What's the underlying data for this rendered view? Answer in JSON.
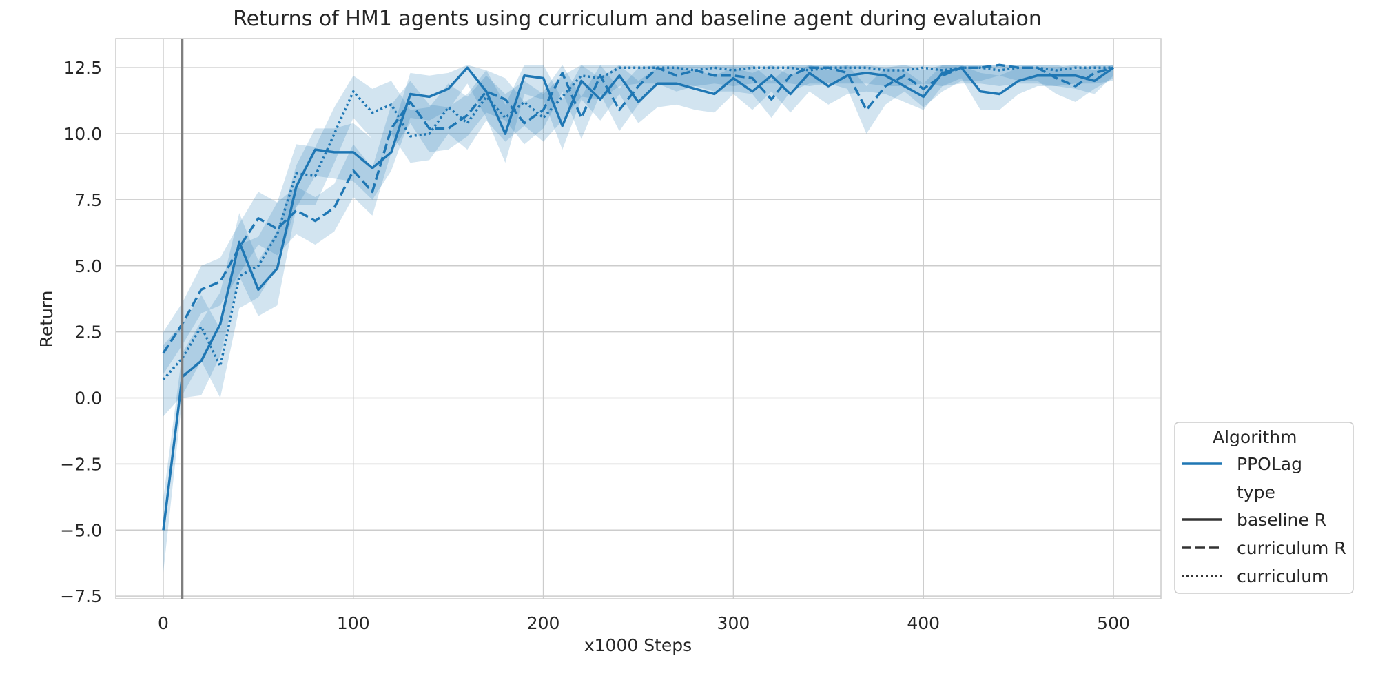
{
  "chart_data": {
    "type": "line",
    "title": "Returns of HM1 agents using curriculum and baseline agent during evalutaion",
    "xlabel": "x1000 Steps",
    "ylabel": "Return",
    "xlim": [
      -25,
      525
    ],
    "ylim": [
      -7.6,
      13.6
    ],
    "xticks": [
      0,
      100,
      200,
      300,
      400,
      500
    ],
    "xtick_labels": [
      "0",
      "100",
      "200",
      "300",
      "400",
      "500"
    ],
    "yticks": [
      -7.5,
      -5.0,
      -2.5,
      0.0,
      2.5,
      5.0,
      7.5,
      10.0,
      12.5
    ],
    "ytick_labels": [
      "−7.5",
      "−5.0",
      "−2.5",
      "0.0",
      "2.5",
      "5.0",
      "7.5",
      "10.0",
      "12.5"
    ],
    "grid": true,
    "vline_x": 10,
    "legend_position": "lower-right outside",
    "legend": {
      "algorithm_title": "Algorithm",
      "algorithm_entries": [
        {
          "label": "PPOLag",
          "color": "#1f77b4"
        }
      ],
      "type_title": "type",
      "type_entries": [
        {
          "label": "baseline R",
          "dash": "solid"
        },
        {
          "label": "curriculum R",
          "dash": "dashed"
        },
        {
          "label": "curriculum",
          "dash": "dotted"
        }
      ]
    },
    "colors": {
      "series": "#1f77b4",
      "band": "#1f77b4",
      "vline": "#7f7f7f",
      "grid": "#cccccc",
      "axis": "#cccccc"
    },
    "x": [
      0,
      10,
      20,
      30,
      40,
      50,
      60,
      70,
      80,
      90,
      100,
      110,
      120,
      130,
      140,
      150,
      160,
      170,
      180,
      190,
      200,
      210,
      220,
      230,
      240,
      250,
      260,
      270,
      280,
      290,
      300,
      310,
      320,
      330,
      340,
      350,
      360,
      370,
      380,
      390,
      400,
      410,
      420,
      430,
      440,
      450,
      460,
      470,
      480,
      490,
      500
    ],
    "series": [
      {
        "name": "baseline R",
        "dash": "solid",
        "values": [
          -5.0,
          0.8,
          1.4,
          2.8,
          5.9,
          4.1,
          4.9,
          8.0,
          9.4,
          9.3,
          9.3,
          8.7,
          9.3,
          11.5,
          11.4,
          11.7,
          12.5,
          11.6,
          10.0,
          12.2,
          12.1,
          10.3,
          12.0,
          11.3,
          12.2,
          11.2,
          11.9,
          11.9,
          11.7,
          11.5,
          12.1,
          11.6,
          12.2,
          11.5,
          12.3,
          11.8,
          12.2,
          12.3,
          12.2,
          11.8,
          11.4,
          12.3,
          12.5,
          11.6,
          11.5,
          12.0,
          12.2,
          12.2,
          12.2,
          12.0,
          12.5
        ],
        "lower": [
          -6.6,
          0.0,
          0.1,
          1.6,
          4.6,
          3.1,
          3.5,
          7.2,
          8.4,
          8.3,
          8.2,
          7.5,
          8.6,
          10.6,
          10.5,
          10.9,
          11.9,
          10.6,
          8.9,
          11.5,
          11.3,
          9.4,
          11.3,
          10.5,
          11.5,
          10.4,
          11.0,
          11.1,
          10.9,
          10.8,
          11.5,
          10.9,
          11.6,
          10.8,
          11.6,
          11.1,
          11.5,
          11.6,
          11.5,
          11.2,
          10.9,
          11.8,
          12.1,
          10.9,
          10.9,
          11.5,
          11.8,
          11.8,
          11.7,
          11.5,
          12.2
        ],
        "upper": [
          -3.8,
          1.7,
          2.9,
          4.0,
          7.0,
          5.2,
          6.3,
          8.8,
          10.2,
          10.2,
          10.4,
          9.8,
          10.0,
          12.3,
          12.2,
          12.3,
          12.6,
          12.4,
          11.1,
          12.6,
          12.6,
          11.3,
          12.6,
          12.1,
          12.6,
          12.0,
          12.5,
          12.5,
          12.4,
          12.2,
          12.5,
          12.3,
          12.6,
          12.2,
          12.6,
          12.4,
          12.6,
          12.6,
          12.5,
          12.4,
          11.9,
          12.6,
          12.6,
          12.3,
          12.2,
          12.5,
          12.5,
          12.5,
          12.6,
          12.4,
          12.6
        ]
      },
      {
        "name": "curriculum R",
        "dash": "dashed",
        "values": [
          1.7,
          2.8,
          4.1,
          4.4,
          5.7,
          6.8,
          6.4,
          7.1,
          6.7,
          7.2,
          8.6,
          7.8,
          10.2,
          11.2,
          10.2,
          10.2,
          10.7,
          11.6,
          11.3,
          10.4,
          10.9,
          12.3,
          10.6,
          12.2,
          10.9,
          11.8,
          12.5,
          12.2,
          12.4,
          12.2,
          12.2,
          12.1,
          11.3,
          12.2,
          12.5,
          12.5,
          12.3,
          10.9,
          11.8,
          12.2,
          11.7,
          12.2,
          12.5,
          12.5,
          12.6,
          12.5,
          12.5,
          12.1,
          11.8,
          12.3,
          12.5
        ],
        "lower": [
          0.9,
          2.0,
          3.2,
          3.5,
          4.7,
          5.8,
          5.4,
          6.2,
          5.8,
          6.3,
          7.6,
          6.9,
          9.3,
          10.4,
          9.3,
          9.4,
          9.9,
          10.8,
          10.5,
          9.6,
          10.2,
          11.6,
          9.8,
          11.5,
          10.1,
          11.1,
          11.9,
          11.6,
          11.8,
          11.6,
          11.6,
          11.5,
          10.6,
          11.6,
          11.9,
          11.9,
          11.7,
          10.0,
          11.1,
          11.6,
          11.0,
          11.6,
          12.0,
          12.0,
          12.2,
          12.0,
          12.0,
          11.5,
          11.2,
          11.7,
          12.1
        ],
        "upper": [
          2.5,
          3.6,
          5.0,
          5.3,
          6.6,
          7.8,
          7.4,
          8.0,
          7.6,
          8.1,
          9.6,
          8.7,
          11.1,
          12.0,
          11.1,
          11.0,
          11.5,
          12.4,
          12.1,
          11.2,
          11.6,
          12.6,
          11.4,
          12.6,
          11.7,
          12.5,
          12.6,
          12.6,
          12.6,
          12.6,
          12.6,
          12.6,
          12.0,
          12.6,
          12.6,
          12.6,
          12.6,
          11.8,
          12.5,
          12.6,
          12.4,
          12.6,
          12.6,
          12.6,
          12.6,
          12.6,
          12.6,
          12.6,
          12.4,
          12.6,
          12.6
        ]
      },
      {
        "name": "curriculum",
        "dash": "dotted",
        "values": [
          0.7,
          1.5,
          2.7,
          1.2,
          4.6,
          5.0,
          6.2,
          8.5,
          8.4,
          10.0,
          11.6,
          10.8,
          11.1,
          9.9,
          10.0,
          11.0,
          10.4,
          11.4,
          10.6,
          11.2,
          10.6,
          11.4,
          12.2,
          12.1,
          12.5,
          12.5,
          12.5,
          12.5,
          12.4,
          12.5,
          12.4,
          12.5,
          12.5,
          12.5,
          12.4,
          12.5,
          12.5,
          12.5,
          12.4,
          12.4,
          12.5,
          12.4,
          12.5,
          12.5,
          12.4,
          12.5,
          12.5,
          12.4,
          12.5,
          12.5,
          12.5
        ],
        "lower": [
          -0.7,
          0.1,
          1.4,
          0.0,
          3.4,
          3.8,
          5.0,
          7.3,
          7.3,
          8.9,
          10.6,
          9.8,
          10.0,
          8.9,
          9.0,
          10.0,
          9.4,
          10.5,
          9.7,
          10.3,
          9.7,
          10.5,
          11.4,
          11.3,
          11.8,
          11.9,
          11.9,
          11.9,
          11.8,
          11.9,
          11.8,
          11.9,
          11.9,
          11.9,
          11.8,
          11.9,
          11.9,
          11.9,
          11.8,
          11.8,
          11.9,
          11.8,
          11.9,
          11.9,
          11.8,
          11.9,
          11.9,
          11.8,
          11.9,
          11.9,
          12.0
        ],
        "upper": [
          2.0,
          2.8,
          3.9,
          2.6,
          5.8,
          6.1,
          7.4,
          9.6,
          9.5,
          11.0,
          12.2,
          11.7,
          12.0,
          10.9,
          11.0,
          11.9,
          11.4,
          12.2,
          11.5,
          12.0,
          11.5,
          12.2,
          12.6,
          12.6,
          12.6,
          12.6,
          12.6,
          12.6,
          12.6,
          12.6,
          12.6,
          12.6,
          12.6,
          12.6,
          12.6,
          12.6,
          12.6,
          12.6,
          12.6,
          12.6,
          12.6,
          12.6,
          12.6,
          12.6,
          12.6,
          12.6,
          12.6,
          12.6,
          12.6,
          12.6,
          12.6
        ]
      }
    ]
  }
}
